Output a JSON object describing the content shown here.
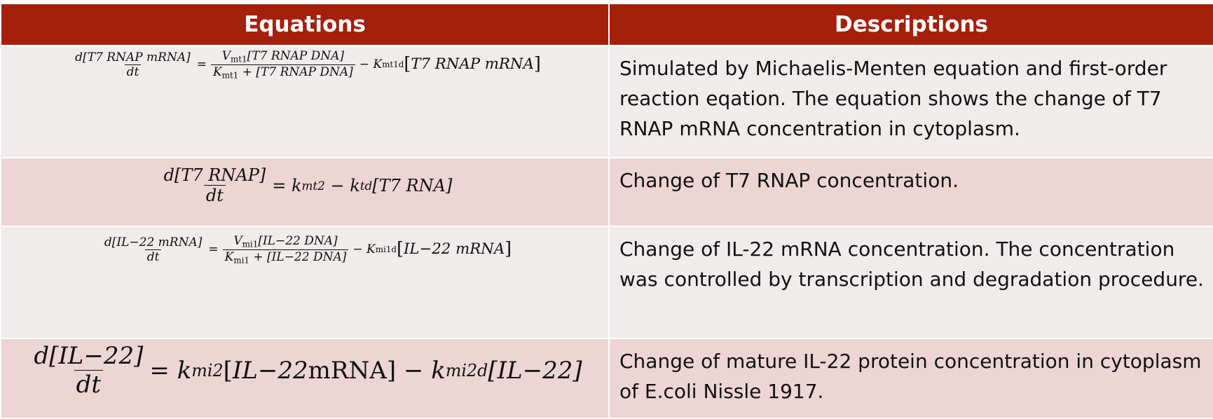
{
  "table": {
    "headers": {
      "equations": "Equations",
      "descriptions": "Descriptions"
    },
    "colors": {
      "header_bg": "#a5200b",
      "header_text": "#ffffff",
      "row_light": "#efeceb",
      "row_pink": "#ecd5d2"
    },
    "rows": [
      {
        "equation": {
          "lhs_num": "d[T7 RNAP mRNA]",
          "lhs_den": "dt",
          "eq": "=",
          "frac_num_v": "V",
          "frac_num_v_sub": "mt1",
          "frac_num_rest": "[T7 RNAP DNA]",
          "frac_den_k": "K",
          "frac_den_k_sub": "mt1",
          "frac_den_rest": " + [T7 RNAP DNA]",
          "minus": "−",
          "k": "K",
          "k_sub": "mt1d",
          "bracket_open": "[",
          "term": "T7 RNAP mRNA",
          "bracket_close": "]"
        },
        "description": "Simulated by Michaelis-Menten equation and first-order reaction eqation. The equation shows the change of T7 RNAP mRNA concentration in cytoplasm."
      },
      {
        "equation": {
          "lhs_num": "d[T7 RNAP]",
          "lhs_den": "dt",
          "eq": "=",
          "k1": "k",
          "k1_sub": "mt2",
          "minus": "−",
          "k2": "k",
          "k2_sub": "td",
          "term": "[T7 RNA]"
        },
        "description": "Change of T7 RNAP concentration."
      },
      {
        "equation": {
          "lhs_num": "d[IL−22 mRNA]",
          "lhs_den": "dt",
          "eq": "=",
          "frac_num_v": "V",
          "frac_num_v_sub": "mi1",
          "frac_num_rest": "[IL−22 DNA]",
          "frac_den_k": "K",
          "frac_den_k_sub": "mi1",
          "frac_den_rest": " + [IL−22 DNA]",
          "minus": "−",
          "k": "K",
          "k_sub": "mi1d",
          "bracket_open": "[",
          "term": "IL−22 mRNA",
          "bracket_close": "]"
        },
        "description": "Change of IL-22 mRNA concentration. The concentration was controlled by transcription and degradation procedure."
      },
      {
        "equation": {
          "lhs_num": "d[IL−22]",
          "lhs_den": "dt",
          "eq": "=",
          "k1": "k",
          "k1_sub": "mi2",
          "term1_open": "[",
          "term1_italic": "IL−22",
          "term1_roman": "mRNA",
          "term1_close": "]",
          "minus": "−",
          "k2": "k",
          "k2_sub": "mi2d",
          "term2": "[IL−22]"
        },
        "description": "Change of mature IL-22 protein concentration in cytoplasm of E.coli Nissle 1917."
      }
    ]
  }
}
